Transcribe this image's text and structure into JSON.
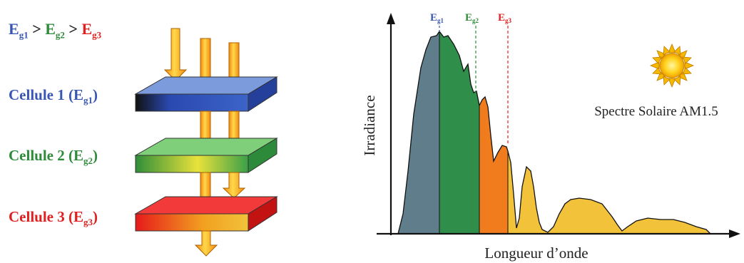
{
  "left_panel": {
    "inequality": {
      "eg1": {
        "main": "E",
        "sub": "g1"
      },
      "gt1": " > ",
      "eg2": {
        "main": "E",
        "sub": "g2"
      },
      "gt2": " > ",
      "eg3": {
        "main": "E",
        "sub": "g3"
      }
    },
    "cells": [
      {
        "label": "Cellule 1 (E",
        "sub": "g1",
        "close": ")",
        "color": "#3a56b4"
      },
      {
        "label": "Cellule 2 (E",
        "sub": "g2",
        "close": ")",
        "color": "#2e8b3a"
      },
      {
        "label": "Cellule 3 (E",
        "sub": "g3",
        "close": ")",
        "color": "#e02020"
      }
    ]
  },
  "right_panel": {
    "y_axis_label": "Irradiance",
    "x_axis_label": "Longueur d’onde",
    "spectrum_label": "Spectre Solaire AM1.5",
    "markers": [
      {
        "main": "E",
        "sub": "g1",
        "color": "#3a56b4"
      },
      {
        "main": "E",
        "sub": "g2",
        "color": "#2e8b3a"
      },
      {
        "main": "E",
        "sub": "g3",
        "color": "#e02020"
      }
    ],
    "region_colors": [
      "#5f7d8a",
      "#2f8f4a",
      "#f07c1e",
      "#f2c23a"
    ]
  },
  "icons": {
    "sun": "sun-icon"
  }
}
